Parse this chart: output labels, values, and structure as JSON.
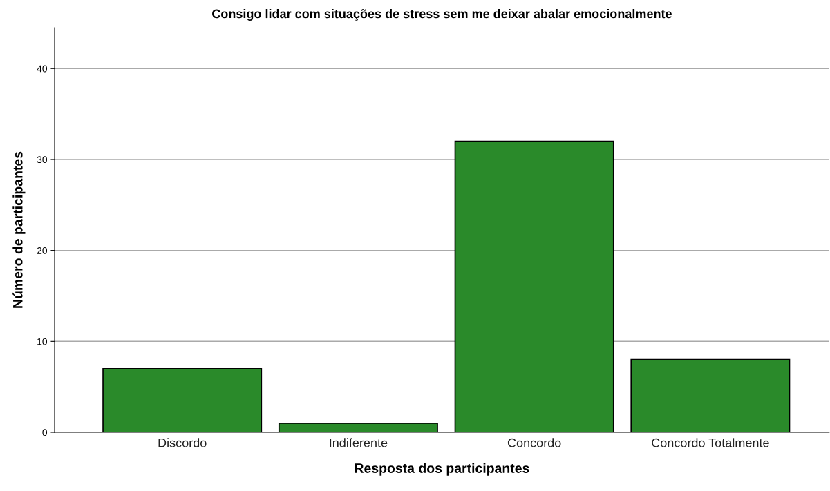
{
  "chart_data": {
    "type": "bar",
    "title": "Consigo lidar com situações de stress sem me deixar abalar emocionalmente",
    "xlabel": "Resposta dos participantes",
    "ylabel": "Número de participantes",
    "categories": [
      "Discordo",
      "Indiferente",
      "Concordo",
      "Concordo Totalmente"
    ],
    "values": [
      7,
      1,
      32,
      8
    ],
    "color": "#2a8a2a",
    "ylim": [
      0,
      44.5
    ],
    "yticks": [
      0,
      10,
      20,
      30,
      40
    ],
    "grid": "y"
  }
}
